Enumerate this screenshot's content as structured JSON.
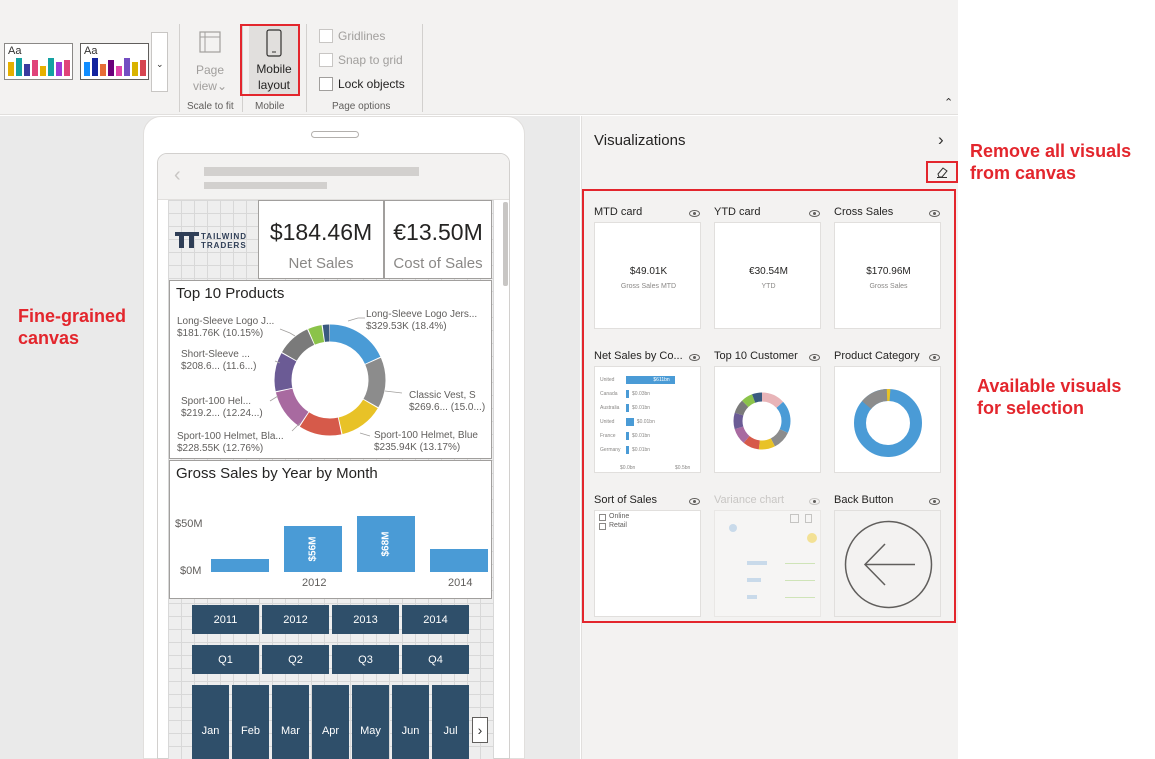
{
  "ribbon": {
    "themes": [
      {
        "label": "Aa",
        "colors": [
          "#e6b000",
          "#14a2a2",
          "#3a3a9e",
          "#e0437a",
          "#e6b000",
          "#14a2a2",
          "#9e3ad6",
          "#e0437a"
        ]
      },
      {
        "label": "Aa",
        "colors": [
          "#118dff",
          "#12239e",
          "#e66c37",
          "#6b007b",
          "#e044a7",
          "#744ec2",
          "#d9b300",
          "#d64550"
        ]
      }
    ],
    "page_view_label": "Page view",
    "page_view_line1": "Page",
    "page_view_line2": "view",
    "mobile_layout_line1": "Mobile",
    "mobile_layout_line2": "layout",
    "gridlines_label": "Gridlines",
    "snap_label": "Snap to grid",
    "lock_label": "Lock objects",
    "group_scale": "Scale to fit",
    "group_mobile": "Mobile",
    "group_page_options": "Page options"
  },
  "canvas": {
    "logo_line1": "TAILWIND",
    "logo_line2": "TRADERS",
    "kpi1": {
      "value": "$184.46M",
      "label": "Net Sales"
    },
    "kpi2": {
      "value": "€13.50M",
      "label": "Cost of Sales"
    },
    "top10": {
      "title": "Top 10 Products",
      "labels": [
        {
          "name": "Long-Sleeve Logo J...",
          "value": "$181.76K (10.15%)"
        },
        {
          "name": "Short-Sleeve ...",
          "value": "$208.6... (11.6...)"
        },
        {
          "name": "Sport-100 Hel...",
          "value": "$219.2... (12.24...)"
        },
        {
          "name": "Sport-100 Helmet, Bla...",
          "value": "$228.55K (12.76%)"
        },
        {
          "name": "Long-Sleeve Logo Jers...",
          "value": "$329.53K (18.4%)"
        },
        {
          "name": "Classic Vest, S",
          "value": "$269.6... (15.0...)"
        },
        {
          "name": "Sport-100 Helmet, Blue",
          "value": "$235.94K (13.17%)"
        }
      ],
      "slices": [
        {
          "value": 18.4,
          "color": "#4a9bd6"
        },
        {
          "value": 15.05,
          "color": "#8c8c8c"
        },
        {
          "value": 13.17,
          "color": "#e8c227"
        },
        {
          "value": 12.76,
          "color": "#d65a4a"
        },
        {
          "value": 12.24,
          "color": "#a86aa0"
        },
        {
          "value": 11.65,
          "color": "#6b5b95"
        },
        {
          "value": 10.15,
          "color": "#7a7a7a"
        },
        {
          "value": 4.3,
          "color": "#8bc34a"
        },
        {
          "value": 2.28,
          "color": "#3a5a80"
        }
      ]
    },
    "gross_sales": {
      "title": "Gross Sales by Year by Month",
      "y_ticks": [
        "$50M",
        "$0M"
      ],
      "x_ticks": [
        "2012",
        "2014"
      ],
      "bars": [
        {
          "value": 16,
          "label": ""
        },
        {
          "value": 56,
          "label": "$56M"
        },
        {
          "value": 68,
          "label": "$68M"
        },
        {
          "value": 28,
          "label": ""
        }
      ],
      "bar_color": "#4a9bd6"
    },
    "years": [
      "2011",
      "2012",
      "2013",
      "2014"
    ],
    "quarters": [
      "Q1",
      "Q2",
      "Q3",
      "Q4"
    ],
    "months": [
      "Jan",
      "Feb",
      "Mar",
      "Apr",
      "May",
      "Jun",
      "Jul"
    ]
  },
  "viz_panel": {
    "title": "Visualizations",
    "cards": [
      {
        "title": "MTD card",
        "value": "$49.01K",
        "sub": "Gross Sales MTD"
      },
      {
        "title": "YTD card",
        "value": "€30.54M",
        "sub": "YTD"
      },
      {
        "title": "Cross Sales",
        "value": "$170.96M",
        "sub": "Gross Sales"
      },
      {
        "title": "Net Sales by Co..."
      },
      {
        "title": "Top 10 Customer"
      },
      {
        "title": "Product Category"
      },
      {
        "title": "Sort of Sales",
        "options": [
          "Online",
          "Retail"
        ]
      },
      {
        "title": "Variance chart"
      },
      {
        "title": "Back Button"
      }
    ],
    "net_sales_rows": [
      {
        "name": "United",
        "value": "$611bn",
        "frac": 0.95
      },
      {
        "name": "Canada",
        "value": "$0.03bn",
        "frac": 0.05
      },
      {
        "name": "Australia",
        "value": "$0.01bn",
        "frac": 0.03
      },
      {
        "name": "United",
        "value": "$0.01bn",
        "frac": 0.15
      },
      {
        "name": "France",
        "value": "$0.01bn",
        "frac": 0.03
      },
      {
        "name": "Germany",
        "value": "$0.01bn",
        "frac": 0.03
      }
    ],
    "net_sales_axis": [
      "$0.0bn",
      "$0.5bn"
    ]
  },
  "annotations": {
    "remove_all_line1": "Remove all visuals",
    "remove_all_line2": "from canvas",
    "fine_grained_line1": "Fine-grained",
    "fine_grained_line2": "canvas",
    "available_line1": "Available visuals",
    "available_line2": "for selection"
  }
}
